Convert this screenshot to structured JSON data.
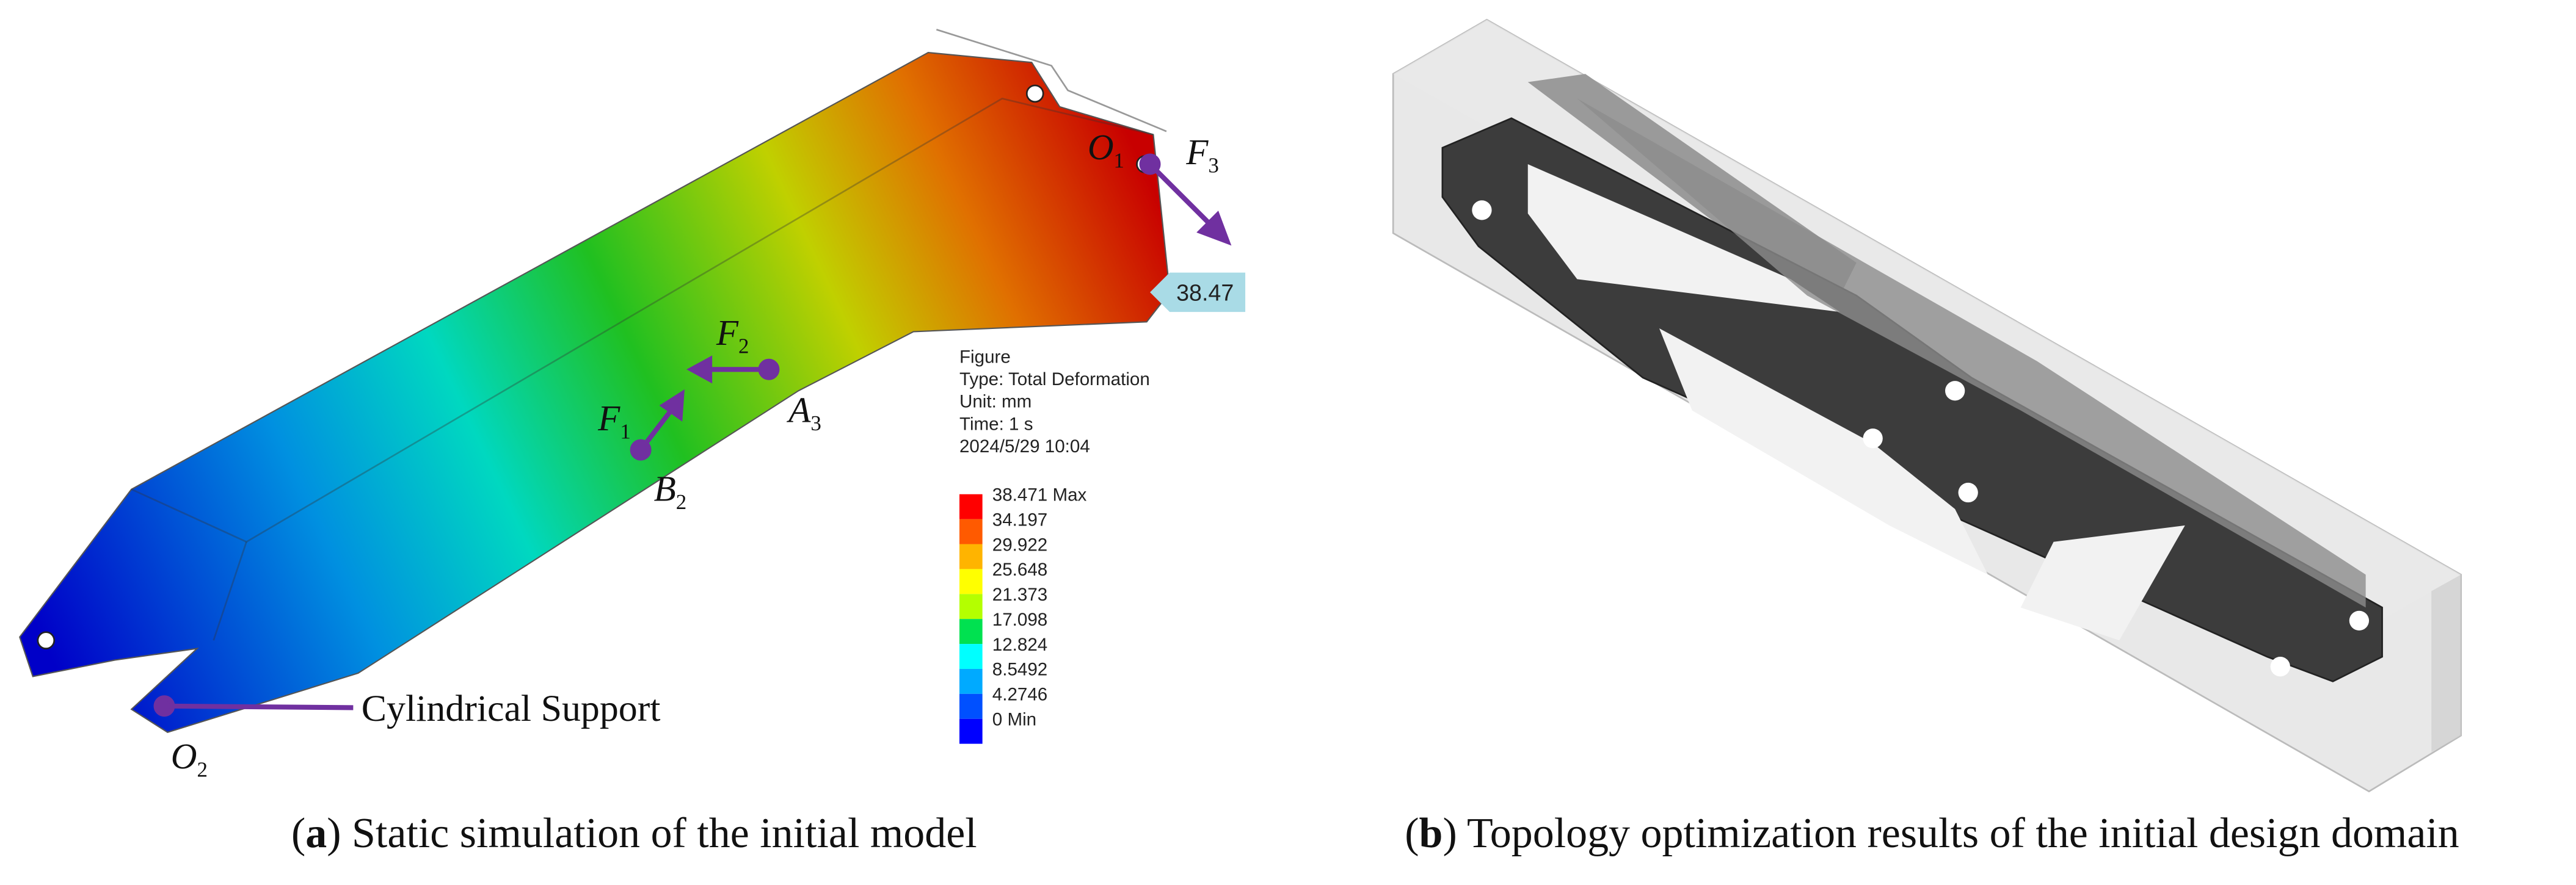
{
  "panel_a": {
    "labels": {
      "o1": {
        "main": "O",
        "sub": "1"
      },
      "f3": {
        "main": "F",
        "sub": "3"
      },
      "f2": {
        "main": "F",
        "sub": "2"
      },
      "f1": {
        "main": "F",
        "sub": "1"
      },
      "a3": {
        "main": "A",
        "sub": "3"
      },
      "b2": {
        "main": "B",
        "sub": "2"
      },
      "o2": {
        "main": "O",
        "sub": "2"
      },
      "support": "Cylindrical Support",
      "probe": "38.47"
    },
    "info": [
      "Figure",
      "Type: Total Deformation",
      "Unit: mm",
      "Time: 1 s",
      "2024/5/29 10:04"
    ],
    "legend": {
      "labels": [
        "38.471 Max",
        "34.197",
        "29.922",
        "25.648",
        "21.373",
        "17.098",
        "12.824",
        "8.5492",
        "4.2746",
        "0 Min"
      ],
      "band_colors": [
        "#ff0000",
        "#ff5a00",
        "#ffb400",
        "#ffff00",
        "#b4ff00",
        "#00e150",
        "#00ffff",
        "#00aaff",
        "#0050ff",
        "#0000ff"
      ]
    },
    "caption": [
      "(",
      "a",
      ") Static simulation of the initial model"
    ]
  },
  "panel_b": {
    "caption": [
      "(",
      "b",
      ") Topology optimization results of the initial design domain"
    ]
  }
}
